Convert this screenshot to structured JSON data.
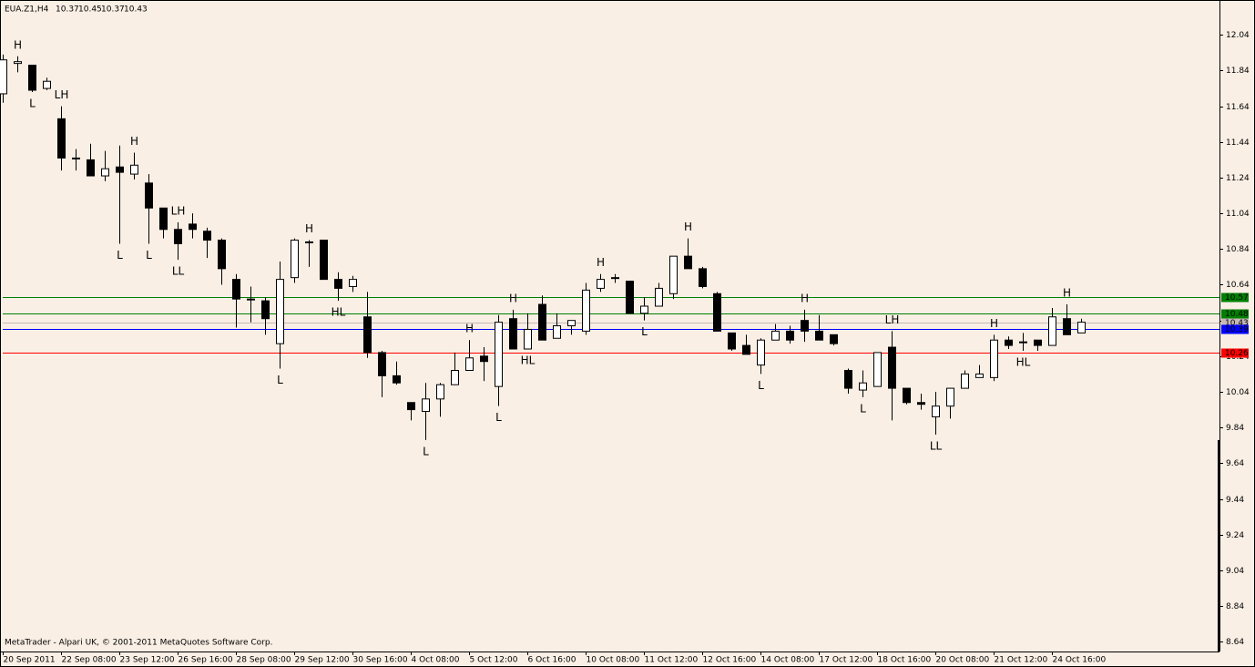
{
  "chart_data": {
    "type": "candlestick",
    "symbol": "EUA.Z1,H4",
    "footer": "MetaTrader - Alpari UK, © 2001-2011 MetaQuotes Software Corp.",
    "categories": [
      "20 Sep 2011",
      null,
      null,
      null,
      "22 Sep 08:00",
      null,
      null,
      null,
      "23 Sep 12:00",
      null,
      null,
      null,
      "26 Sep 16:00",
      null,
      null,
      null,
      "28 Sep 08:00",
      null,
      null,
      null,
      "29 Sep 12:00",
      null,
      null,
      null,
      "30 Sep 16:00",
      null,
      null,
      null,
      "4 Oct 08:00",
      null,
      null,
      null,
      "5 Oct 12:00",
      null,
      null,
      null,
      "6 Oct 16:00",
      null,
      null,
      null,
      "10 Oct 08:00",
      null,
      null,
      null,
      "11 Oct 12:00",
      null,
      null,
      null,
      "12 Oct 16:00",
      null,
      null,
      null,
      "14 Oct 08:00",
      null,
      null,
      null,
      "17 Oct 12:00",
      null,
      null,
      null,
      "18 Oct 16:00",
      null,
      null,
      null,
      "20 Oct 08:00",
      null,
      null,
      null,
      "21 Oct 12:00",
      null,
      null,
      null,
      "24 Oct 16:00",
      null,
      null
    ],
    "open": [
      11.71,
      11.88,
      11.87,
      11.74,
      11.57,
      11.35,
      11.34,
      11.25,
      11.3,
      11.26,
      11.21,
      11.07,
      10.95,
      10.98,
      10.94,
      10.89,
      10.67,
      10.56,
      10.55,
      10.31,
      10.68,
      10.88,
      10.89,
      10.67,
      10.63,
      10.46,
      10.26,
      10.13,
      9.98,
      9.93,
      10.0,
      10.08,
      10.16,
      10.24,
      10.07,
      10.45,
      10.28,
      10.53,
      10.34,
      10.41,
      10.38,
      10.62,
      10.68,
      10.66,
      10.48,
      10.52,
      10.59,
      10.8,
      10.73,
      10.59,
      10.37,
      10.3,
      10.19,
      10.33,
      10.38,
      10.44,
      10.38,
      10.36,
      10.16,
      10.05,
      10.07,
      10.29,
      10.06,
      9.98,
      9.9,
      9.96,
      10.06,
      10.12,
      10.12,
      10.33,
      10.32,
      10.33,
      10.3,
      10.45,
      10.37
    ],
    "high": [
      11.93,
      11.92,
      11.87,
      11.8,
      11.64,
      11.4,
      11.43,
      11.39,
      11.42,
      11.38,
      11.26,
      11.07,
      10.99,
      11.04,
      10.96,
      10.9,
      10.7,
      10.63,
      10.57,
      10.77,
      10.9,
      10.89,
      10.89,
      10.71,
      10.69,
      10.6,
      10.27,
      10.21,
      9.98,
      10.09,
      10.09,
      10.26,
      10.33,
      10.29,
      10.47,
      10.5,
      10.48,
      10.58,
      10.48,
      10.44,
      10.65,
      10.7,
      10.7,
      10.66,
      10.57,
      10.65,
      10.8,
      10.9,
      10.74,
      10.6,
      10.37,
      10.36,
      10.34,
      10.42,
      10.41,
      10.5,
      10.47,
      10.36,
      10.17,
      10.16,
      10.26,
      10.38,
      10.06,
      10.03,
      10.04,
      10.06,
      10.16,
      10.19,
      10.36,
      10.35,
      10.37,
      10.33,
      10.51,
      10.53,
      10.45
    ],
    "low": [
      11.66,
      11.83,
      11.72,
      11.73,
      11.28,
      11.28,
      11.25,
      11.22,
      10.87,
      11.23,
      10.87,
      10.9,
      10.78,
      10.9,
      10.79,
      10.64,
      10.4,
      10.43,
      10.36,
      10.17,
      10.65,
      10.74,
      10.67,
      10.55,
      10.6,
      10.23,
      10.01,
      10.08,
      9.88,
      9.77,
      9.9,
      10.08,
      10.16,
      10.1,
      9.96,
      10.28,
      10.28,
      10.33,
      10.34,
      10.36,
      10.36,
      10.6,
      10.65,
      10.48,
      10.44,
      10.52,
      10.56,
      10.73,
      10.62,
      10.38,
      10.27,
      10.25,
      10.14,
      10.33,
      10.31,
      10.32,
      10.33,
      10.3,
      10.03,
      10.01,
      10.07,
      9.88,
      9.97,
      9.94,
      9.8,
      9.89,
      10.06,
      10.12,
      10.1,
      10.28,
      10.27,
      10.27,
      10.3,
      10.36,
      10.37
    ],
    "close": [
      11.9,
      11.89,
      11.73,
      11.78,
      11.35,
      11.35,
      11.25,
      11.29,
      11.27,
      11.31,
      11.07,
      10.95,
      10.87,
      10.95,
      10.89,
      10.73,
      10.56,
      10.56,
      10.45,
      10.67,
      10.89,
      10.88,
      10.67,
      10.62,
      10.67,
      10.26,
      10.13,
      10.09,
      9.94,
      10.0,
      10.08,
      10.16,
      10.23,
      10.21,
      10.43,
      10.28,
      10.39,
      10.33,
      10.41,
      10.44,
      10.61,
      10.67,
      10.68,
      10.48,
      10.52,
      10.62,
      10.8,
      10.73,
      10.63,
      10.38,
      10.28,
      10.25,
      10.33,
      10.38,
      10.33,
      10.38,
      10.33,
      10.31,
      10.06,
      10.09,
      10.26,
      10.06,
      9.98,
      9.97,
      9.96,
      10.06,
      10.14,
      10.14,
      10.33,
      10.3,
      10.32,
      10.3,
      10.46,
      10.36,
      10.43
    ],
    "labels_above": [
      null,
      "H",
      null,
      null,
      "LH",
      null,
      null,
      null,
      null,
      "H",
      null,
      null,
      "LH",
      null,
      null,
      null,
      null,
      null,
      null,
      null,
      null,
      "H",
      null,
      null,
      null,
      null,
      null,
      null,
      null,
      null,
      null,
      null,
      "H",
      null,
      null,
      "H",
      null,
      null,
      null,
      null,
      null,
      "H",
      null,
      null,
      null,
      null,
      null,
      "H",
      null,
      null,
      null,
      null,
      null,
      null,
      null,
      "H",
      null,
      null,
      null,
      null,
      null,
      "LH",
      null,
      null,
      null,
      null,
      null,
      null,
      "H",
      null,
      null,
      null,
      null,
      "H",
      null
    ],
    "labels_below": [
      null,
      null,
      "L",
      null,
      null,
      null,
      null,
      null,
      "L",
      null,
      "L",
      null,
      "LL",
      null,
      null,
      null,
      null,
      null,
      null,
      "L",
      null,
      null,
      null,
      "HL",
      null,
      null,
      null,
      null,
      null,
      "L",
      null,
      null,
      null,
      null,
      "L",
      null,
      "HL",
      null,
      null,
      null,
      null,
      null,
      null,
      null,
      "L",
      null,
      null,
      null,
      null,
      null,
      null,
      null,
      "L",
      null,
      null,
      null,
      null,
      null,
      null,
      "L",
      null,
      null,
      null,
      null,
      "LL",
      null,
      null,
      null,
      null,
      null,
      "HL",
      null,
      null,
      null,
      null
    ],
    "bull_color": "#ffffff",
    "bear_color": "#000000",
    "levels": [
      {
        "value": 10.57,
        "color": "#008000",
        "label_color": "#ffffff"
      },
      {
        "value": 10.48,
        "color": "#008000",
        "label_color": "#ffffff"
      },
      {
        "value": 10.43,
        "color": "#c8b8b8",
        "label_color": "#000000"
      },
      {
        "value": 10.39,
        "color": "#0000ff",
        "label_color": "#ffffff"
      },
      {
        "value": 10.26,
        "color": "#ff0000",
        "label_color": "#ffffff"
      }
    ],
    "ylim": [
      8.59,
      12.21
    ],
    "yticks": [
      12.04,
      11.84,
      11.64,
      11.44,
      11.24,
      11.04,
      10.84,
      10.64,
      10.44,
      10.24,
      10.04,
      9.84,
      9.64,
      9.44,
      9.24,
      9.04,
      8.84,
      8.64
    ]
  }
}
